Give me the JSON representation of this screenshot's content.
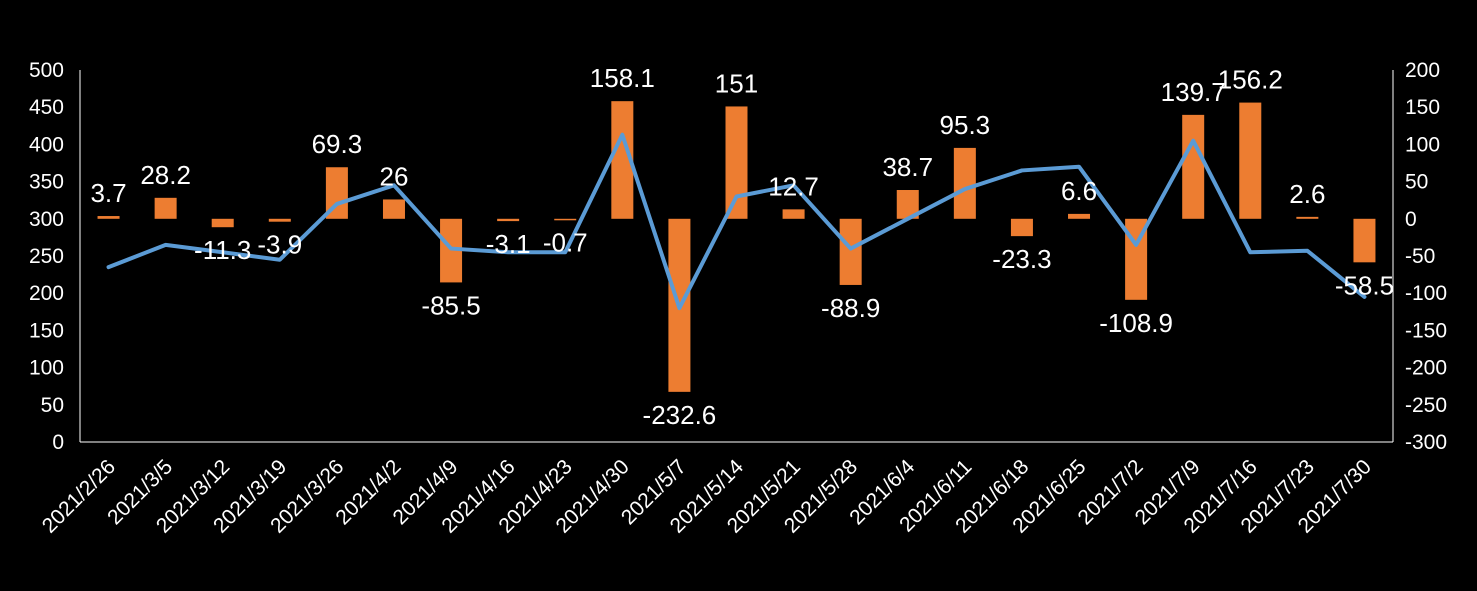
{
  "chart_data": {
    "type": "bar+line",
    "title": "",
    "categories": [
      "2021/2/26",
      "2021/3/5",
      "2021/3/12",
      "2021/3/19",
      "2021/3/26",
      "2021/4/2",
      "2021/4/9",
      "2021/4/16",
      "2021/4/23",
      "2021/4/30",
      "2021/5/7",
      "2021/5/14",
      "2021/5/21",
      "2021/5/28",
      "2021/6/4",
      "2021/6/11",
      "2021/6/18",
      "2021/6/25",
      "2021/7/2",
      "2021/7/9",
      "2021/7/16",
      "2021/7/23",
      "2021/7/30"
    ],
    "bar_series": {
      "name": "",
      "axis": "right",
      "color": "#ED7D31",
      "values": [
        3.7,
        28.2,
        -11.3,
        -3.9,
        69.3,
        26,
        -85.5,
        -3.1,
        -0.7,
        158.1,
        -232.6,
        151,
        12.7,
        -88.9,
        38.7,
        95.3,
        -23.3,
        6.6,
        -108.9,
        139.7,
        156.2,
        2.6,
        -58.5
      ],
      "labels": [
        "3.7",
        "28.2",
        "-11.3",
        "-3.9",
        "69.3",
        "26",
        "-85.5",
        "-3.1",
        "-0.7",
        "158.1",
        "-232.6",
        "151",
        "12.7",
        "-88.9",
        "38.7",
        "95.3",
        "-23.3",
        "6.6",
        "-108.9",
        "139.7",
        "156.2",
        "2.6",
        "-58.5"
      ]
    },
    "line_series": {
      "name": "",
      "axis": "left",
      "color": "#5B9BD5",
      "values": [
        235,
        265,
        255,
        245,
        320,
        345,
        260,
        255,
        255,
        413,
        180,
        330,
        345,
        260,
        300,
        340,
        365,
        370,
        265,
        405,
        255,
        257,
        195
      ]
    },
    "left_axis": {
      "ylim": [
        0,
        500
      ],
      "ticks": [
        "0",
        "50",
        "100",
        "150",
        "200",
        "250",
        "300",
        "350",
        "400",
        "450",
        "500"
      ]
    },
    "right_axis": {
      "ylim": [
        -300,
        200
      ],
      "ticks": [
        "-300",
        "-250",
        "-200",
        "-150",
        "-100",
        "-50",
        "0",
        "50",
        "100",
        "150",
        "200"
      ]
    },
    "xlabel": "",
    "ylabel": "",
    "grid": false,
    "legend": "none"
  }
}
